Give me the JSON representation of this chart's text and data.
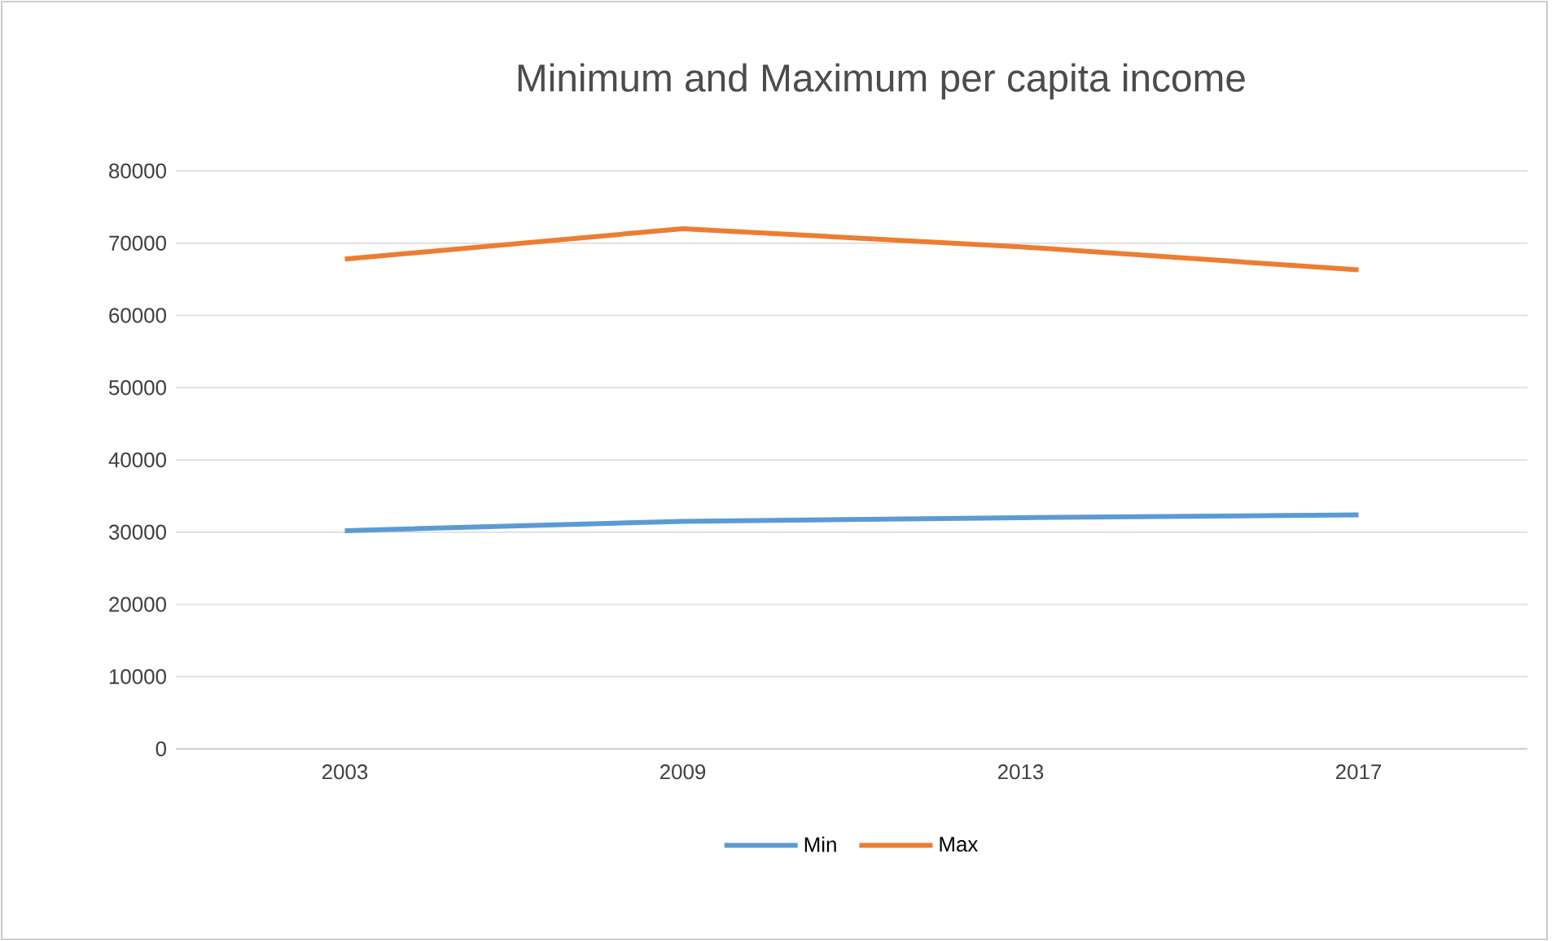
{
  "chart_data": {
    "type": "line",
    "title": "Minimum and Maximum per capita income",
    "categories": [
      "2003",
      "2009",
      "2013",
      "2017"
    ],
    "series": [
      {
        "name": "Min",
        "color": "#5b9bd5",
        "values": [
          30200,
          31500,
          32000,
          32400
        ]
      },
      {
        "name": "Max",
        "color": "#ed7d31",
        "values": [
          67800,
          72000,
          69500,
          66300
        ]
      }
    ],
    "ylim": [
      0,
      80000
    ],
    "yticks": [
      0,
      10000,
      20000,
      30000,
      40000,
      50000,
      60000,
      70000,
      80000
    ],
    "grid": "y",
    "legend": "bottom",
    "marker": "none",
    "line_style": "solid"
  }
}
